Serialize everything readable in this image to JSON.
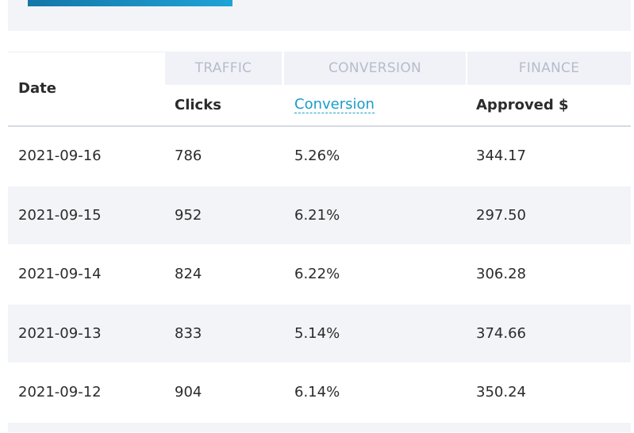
{
  "table": {
    "groups": {
      "traffic": "TRAFFIC",
      "conversion": "CONVERSION",
      "finance": "FINANCE"
    },
    "columns": {
      "date": "Date",
      "clicks": "Clicks",
      "conversion": "Conversion",
      "approved": "Approved $"
    },
    "rows": [
      {
        "date": "2021-09-16",
        "clicks": "786",
        "conversion": "5.26%",
        "approved": "344.17"
      },
      {
        "date": "2021-09-15",
        "clicks": "952",
        "conversion": "6.21%",
        "approved": "297.50"
      },
      {
        "date": "2021-09-14",
        "clicks": "824",
        "conversion": "6.22%",
        "approved": "306.28"
      },
      {
        "date": "2021-09-13",
        "clicks": "833",
        "conversion": "5.14%",
        "approved": "374.66"
      },
      {
        "date": "2021-09-12",
        "clicks": "904",
        "conversion": "6.14%",
        "approved": "350.24"
      }
    ]
  },
  "colors": {
    "accent": "#1a9cc9",
    "row_alt": "#f3f4f8",
    "group_header_bg": "#f0f2f7"
  }
}
